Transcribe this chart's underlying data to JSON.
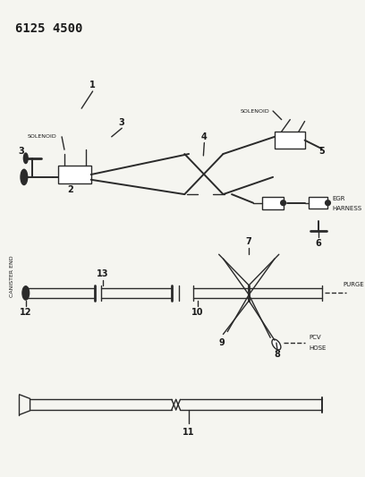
{
  "title": "6125 4500",
  "bg_color": "#f5f5f0",
  "line_color": "#2a2a2a",
  "text_color": "#1a1a1a",
  "title_fontsize": 10,
  "canister_end_text": "CANISTER END",
  "fig_w": 4.08,
  "fig_h": 5.33,
  "dpi": 100,
  "xlim": [
    0,
    408
  ],
  "ylim": [
    0,
    533
  ]
}
